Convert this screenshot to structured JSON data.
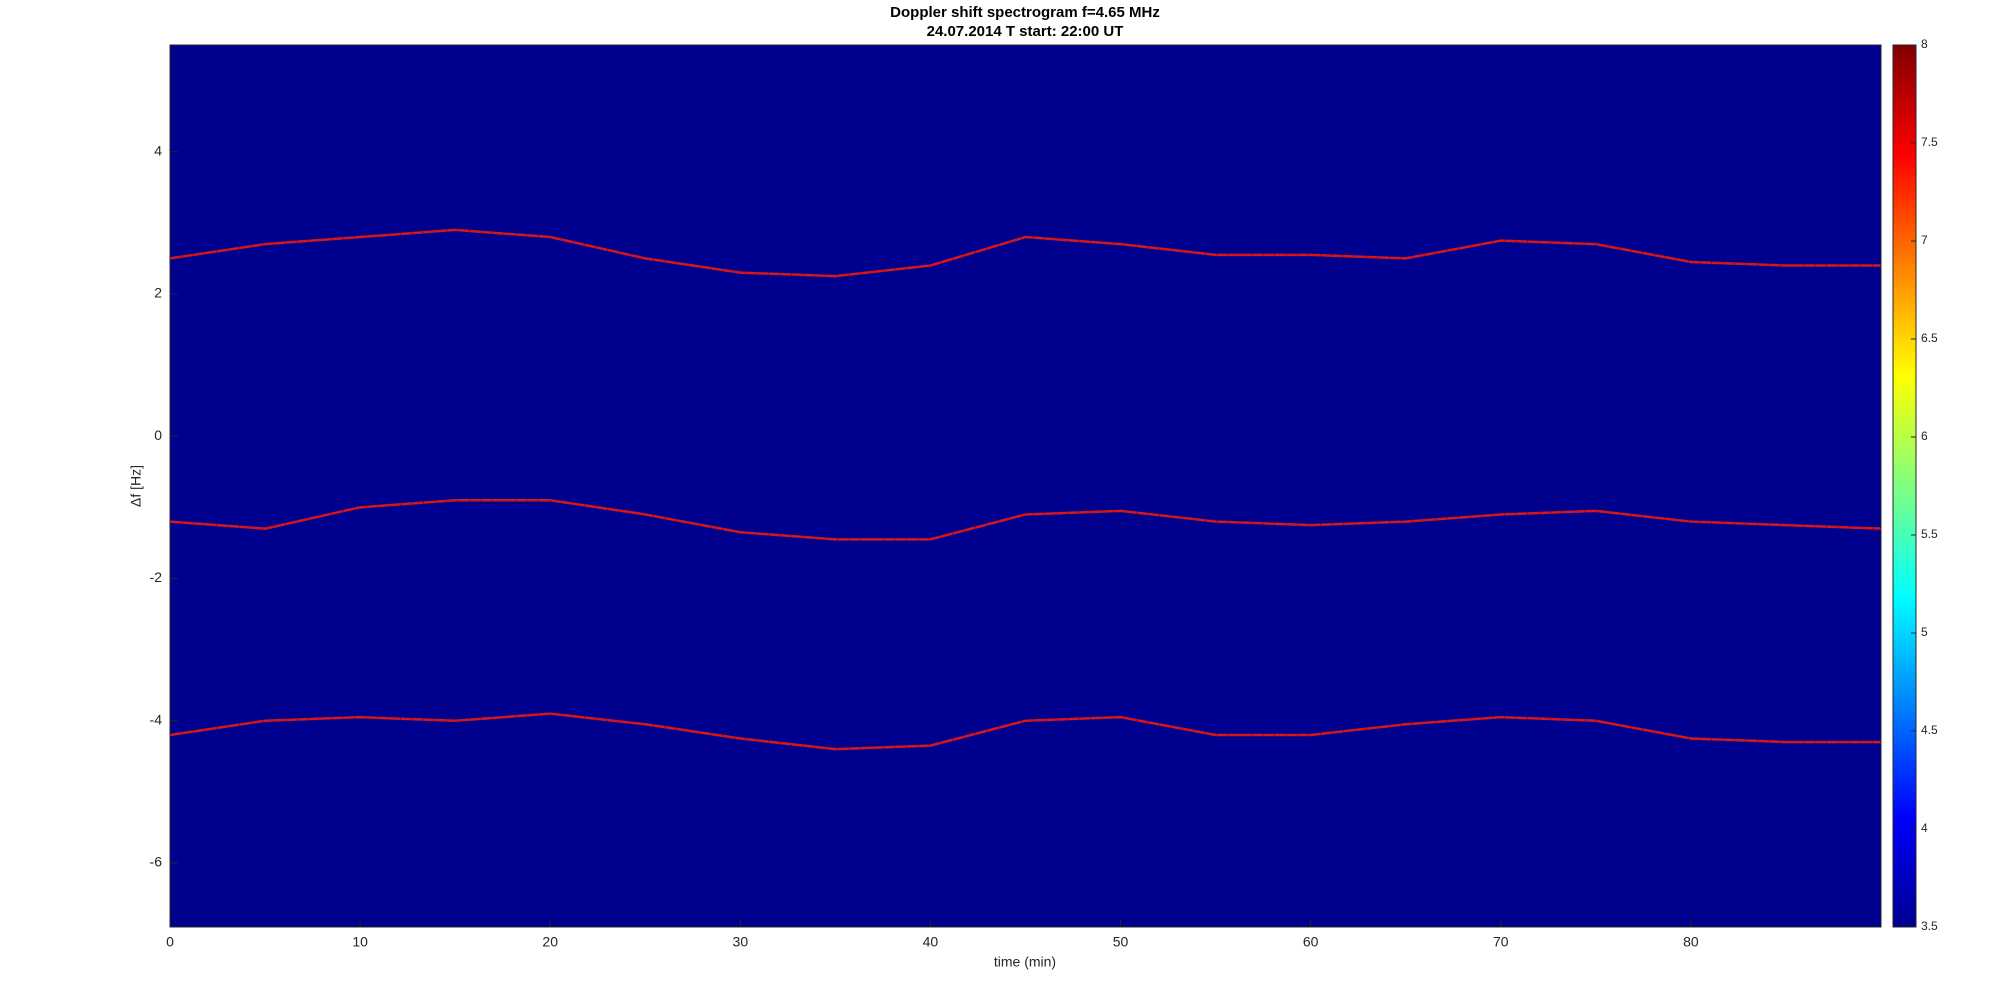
{
  "chart_data": {
    "type": "spectrogram",
    "title": "Doppler shift spectrogram f=4.65 MHz",
    "subtitle": "24.07.2014   T start: 22:00 UT",
    "x_label": "time (min)",
    "y_label": "Δf [Hz]",
    "x": [
      0,
      5,
      10,
      15,
      20,
      25,
      30,
      35,
      40,
      45,
      50,
      55,
      60,
      65,
      70,
      75,
      80,
      85,
      90
    ],
    "series": [
      {
        "color": "#ff1a00",
        "values": [
          2.5,
          2.7,
          2.8,
          2.9,
          2.8,
          2.5,
          2.3,
          2.25,
          2.4,
          2.8,
          2.7,
          2.55,
          2.55,
          2.5,
          2.75,
          2.7,
          2.45,
          2.4,
          2.4
        ]
      },
      {
        "color": "#ff1a00",
        "values": [
          -1.2,
          -1.3,
          -1.0,
          -0.9,
          -0.9,
          -1.1,
          -1.35,
          -1.45,
          -1.45,
          -1.1,
          -1.05,
          -1.2,
          -1.25,
          -1.2,
          -1.1,
          -1.05,
          -1.2,
          -1.25,
          -1.3
        ]
      },
      {
        "color": "#ff1a00",
        "values": [
          -4.2,
          -4.0,
          -3.95,
          -4.0,
          -3.9,
          -4.05,
          -4.25,
          -4.4,
          -4.35,
          -4.0,
          -3.95,
          -4.2,
          -4.2,
          -4.05,
          -3.95,
          -4.0,
          -4.25,
          -4.3,
          -4.3
        ]
      }
    ],
    "xlim": [
      0,
      90
    ],
    "xticks": [
      0,
      10,
      20,
      30,
      40,
      50,
      60,
      70,
      80
    ],
    "ylim": [
      -6.9,
      5.5
    ],
    "yticks": [
      -6,
      -4,
      -2,
      0,
      2,
      4
    ],
    "clim": [
      3.5,
      8
    ],
    "cticks": [
      3.5,
      4,
      4.5,
      5,
      5.5,
      6,
      6.5,
      7,
      7.5,
      8
    ],
    "colormap": [
      "#00008f",
      "#0000ff",
      "#0080ff",
      "#00ffff",
      "#80ff80",
      "#ffff00",
      "#ff8000",
      "#ff0000",
      "#800000"
    ],
    "grid": false
  }
}
